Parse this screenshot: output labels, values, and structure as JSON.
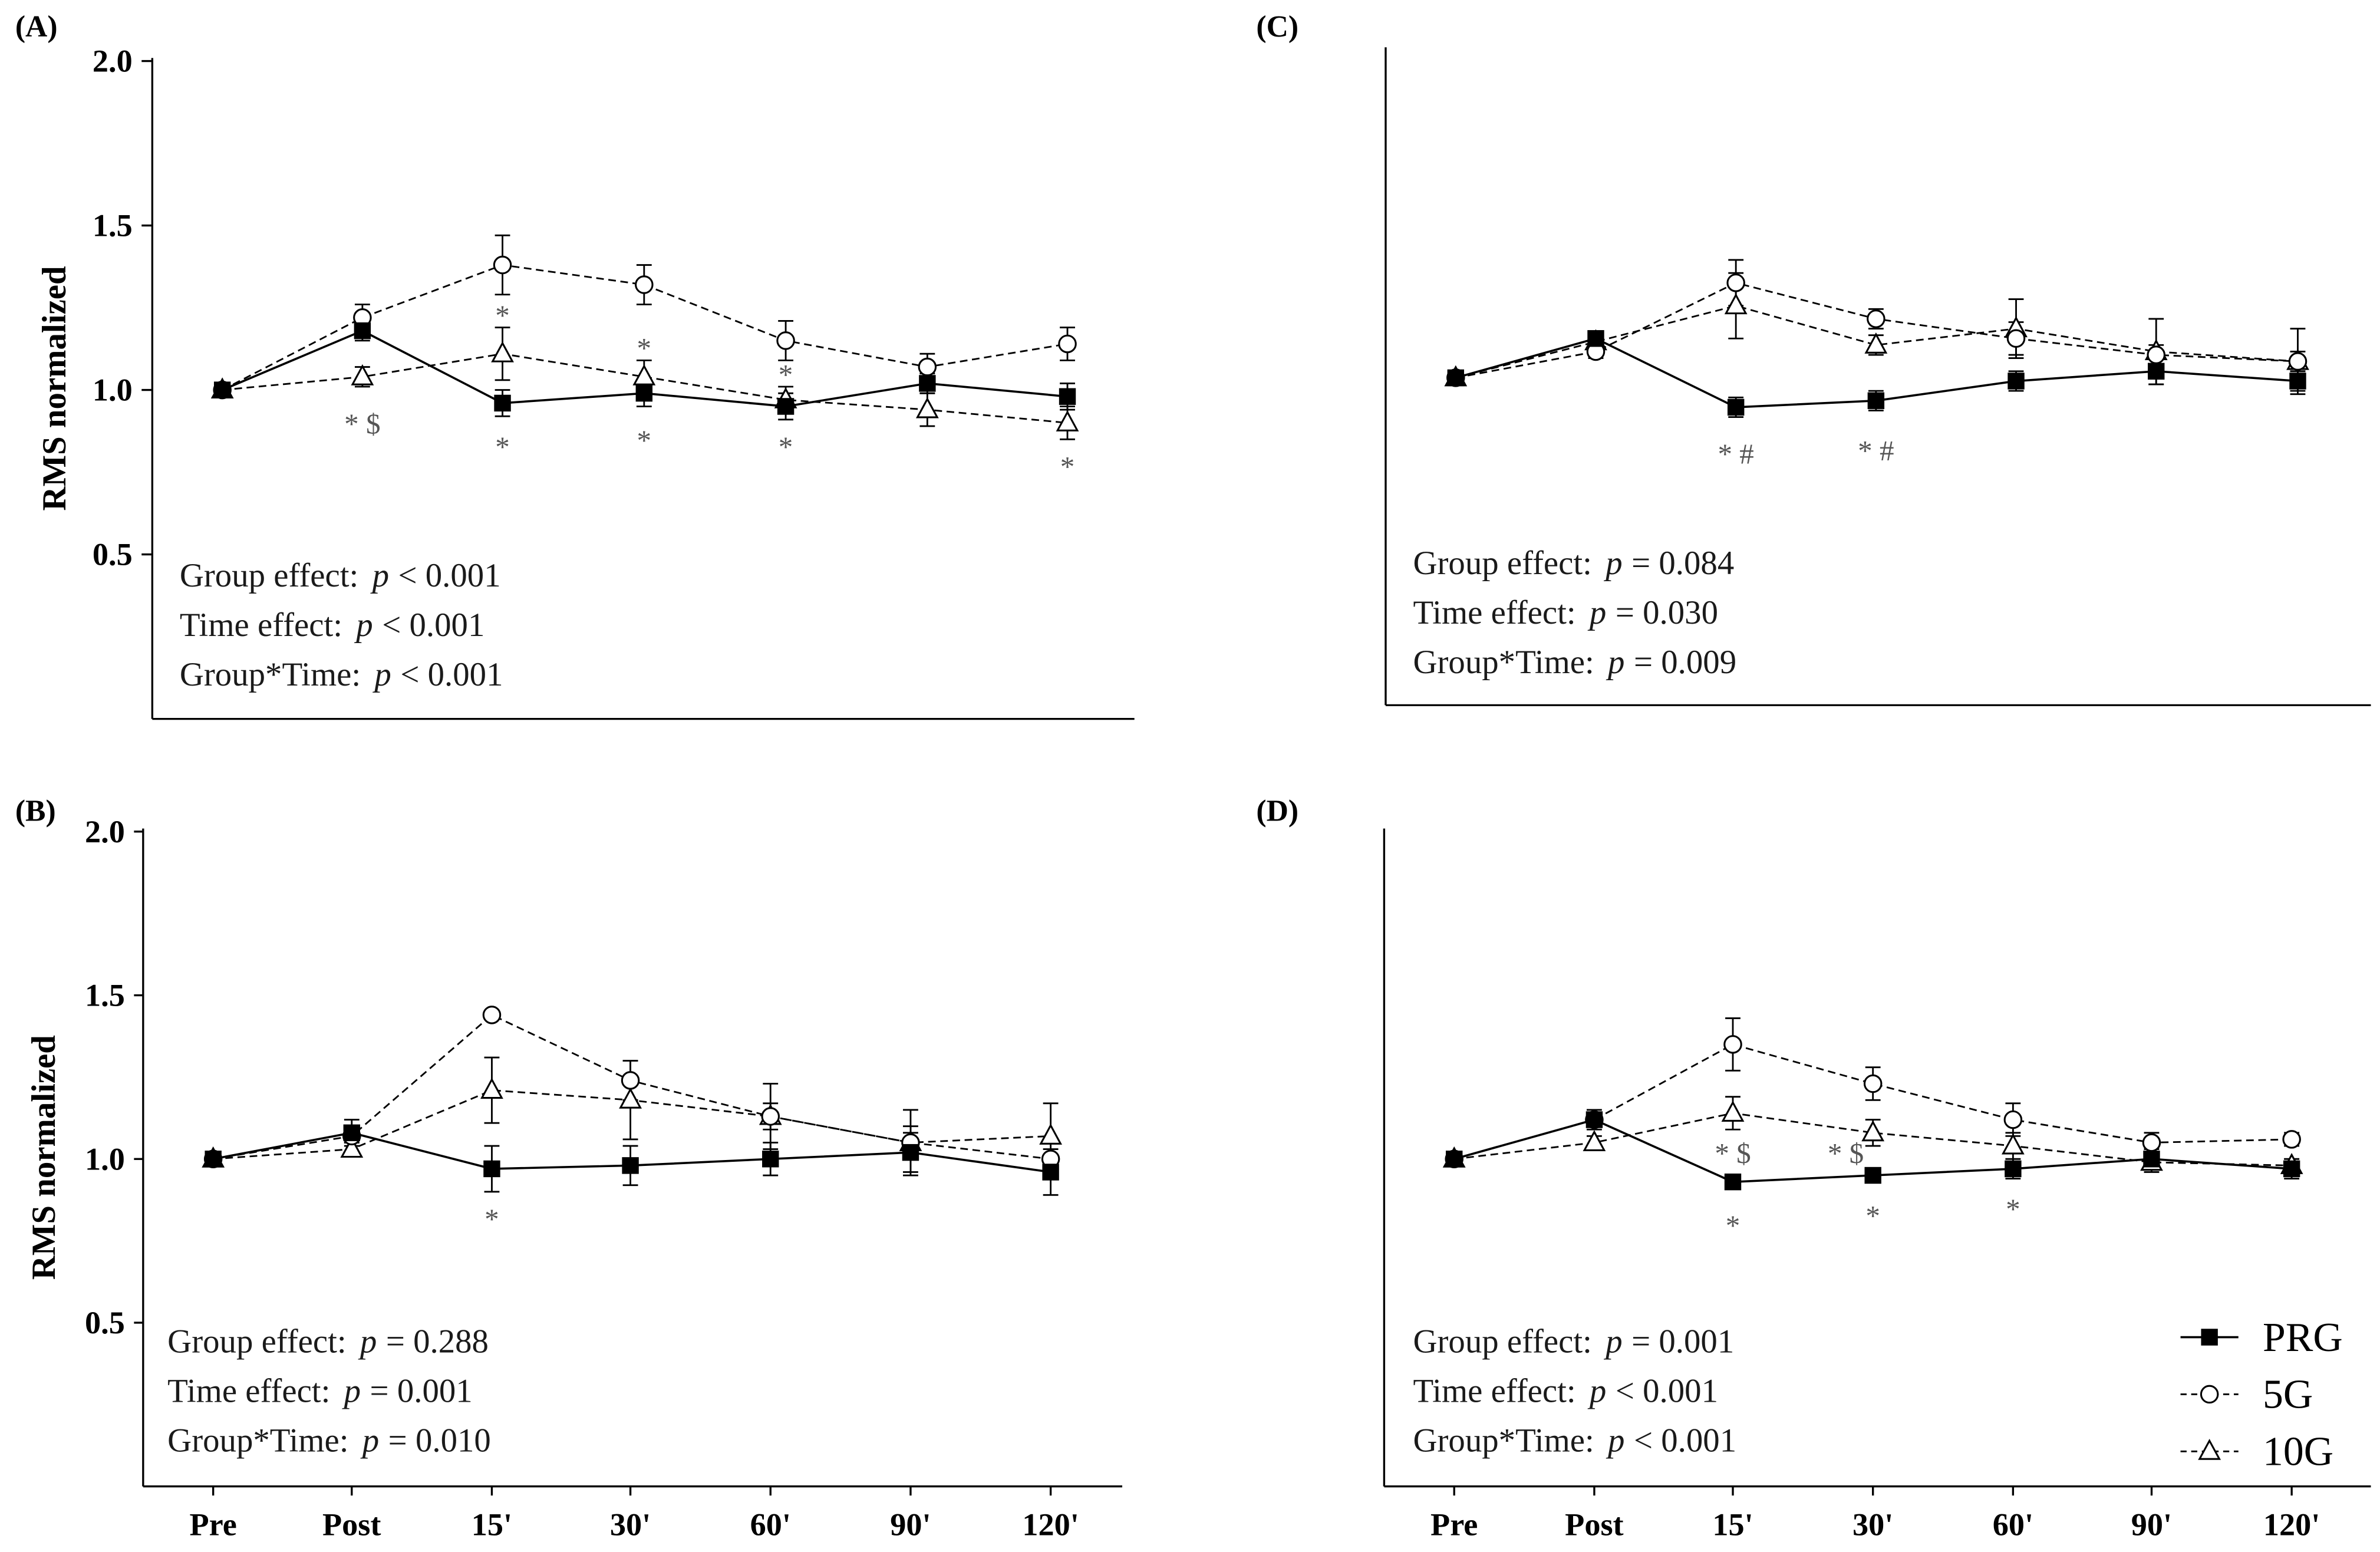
{
  "colors": {
    "line": "#000000",
    "annotation": "#555555",
    "background": "#ffffff",
    "marker_fill": "#ffffff"
  },
  "chart_data": [
    {
      "title": "(A)",
      "type": "line",
      "xlabel": "",
      "ylabel": "RMS normalized",
      "ylim": [
        0,
        2.0
      ],
      "yticks": [
        0.5,
        1.0,
        1.5,
        2.0
      ],
      "ytick_labels": [
        "0.5",
        "1.0",
        "1.5",
        "2.0"
      ],
      "show_x_tick_labels": false,
      "categories": [
        "Pre",
        "Post",
        "15'",
        "30'",
        "60'",
        "90'",
        "120'"
      ],
      "series": [
        {
          "name": "PRG",
          "values": [
            1.0,
            1.18,
            0.96,
            0.99,
            0.95,
            1.02,
            0.98
          ],
          "errors": [
            0,
            0.03,
            0.04,
            0.04,
            0.04,
            0.03,
            0.04
          ]
        },
        {
          "name": "5G",
          "values": [
            1.0,
            1.22,
            1.38,
            1.32,
            1.15,
            1.07,
            1.14
          ],
          "errors": [
            0,
            0.04,
            0.09,
            0.06,
            0.06,
            0.04,
            0.05
          ]
        },
        {
          "name": "10G",
          "values": [
            1.0,
            1.04,
            1.11,
            1.04,
            0.97,
            0.94,
            0.9
          ],
          "errors": [
            0,
            0.03,
            0.08,
            0.05,
            0.04,
            0.05,
            0.05
          ]
        }
      ],
      "annotations": [
        {
          "category": "Post",
          "y": 0.9,
          "text": "* $"
        },
        {
          "category": "15'",
          "y": 1.23,
          "text": "*"
        },
        {
          "category": "15'",
          "y": 0.83,
          "text": "*"
        },
        {
          "category": "30'",
          "y": 1.13,
          "text": "*"
        },
        {
          "category": "30'",
          "y": 0.85,
          "text": "*"
        },
        {
          "category": "60'",
          "y": 1.05,
          "text": "*"
        },
        {
          "category": "60'",
          "y": 0.83,
          "text": "*"
        },
        {
          "category": "120'",
          "y": 0.77,
          "text": "*"
        }
      ],
      "stats": [
        {
          "label": "Group effect:",
          "symbol": "p",
          "value": "< 0.001"
        },
        {
          "label": "Time effect:",
          "symbol": "p",
          "value": "< 0.001"
        },
        {
          "label": "Group*Time:",
          "symbol": "p",
          "value": "< 0.001"
        }
      ]
    },
    {
      "title": "(B)",
      "type": "line",
      "xlabel": "",
      "ylabel": "RMS normalized",
      "ylim": [
        0,
        2.0
      ],
      "yticks": [
        0.5,
        1.0,
        1.5,
        2.0
      ],
      "ytick_labels": [
        "0.5",
        "1.0",
        "1.5",
        "2.0"
      ],
      "show_x_tick_labels": true,
      "categories": [
        "Pre",
        "Post",
        "15'",
        "30'",
        "60'",
        "90'",
        "120'"
      ],
      "series": [
        {
          "name": "PRG",
          "values": [
            1.0,
            1.08,
            0.97,
            0.98,
            1.0,
            1.02,
            0.96
          ],
          "errors": [
            0,
            0.04,
            0.07,
            0.06,
            0.05,
            0.06,
            0.07
          ]
        },
        {
          "name": "5G",
          "values": [
            1.0,
            1.07,
            1.44,
            1.24,
            1.13,
            1.05,
            1.0
          ],
          "errors": [
            0,
            0.02,
            0.01,
            0.06,
            0.1,
            0.1,
            0.01
          ]
        },
        {
          "name": "10G",
          "values": [
            1.0,
            1.03,
            1.21,
            1.18,
            1.13,
            1.05,
            1.07
          ],
          "errors": [
            0,
            0.02,
            0.1,
            0.12,
            0.04,
            0.05,
            0.1
          ]
        }
      ],
      "annotations": [
        {
          "category": "15'",
          "y": 0.82,
          "text": "*"
        }
      ],
      "stats": [
        {
          "label": "Group effect:",
          "symbol": "p",
          "value": "= 0.288"
        },
        {
          "label": "Time effect:",
          "symbol": "p",
          "value": "= 0.001"
        },
        {
          "label": "Group*Time:",
          "symbol": "p",
          "value": "= 0.010"
        }
      ]
    },
    {
      "title": "(C)",
      "type": "line",
      "xlabel": "",
      "ylabel": "",
      "ylim": [
        0,
        2.0
      ],
      "show_x_tick_labels": false,
      "categories": [
        "Pre",
        "Post",
        "15'",
        "30'",
        "60'",
        "90'",
        "120'"
      ],
      "series": [
        {
          "name": "PRG",
          "values": [
            1.0,
            1.12,
            0.91,
            0.93,
            0.99,
            1.02,
            0.99
          ],
          "errors": [
            0,
            0.02,
            0.03,
            0.03,
            0.03,
            0.04,
            0.03
          ]
        },
        {
          "name": "5G",
          "values": [
            1.0,
            1.08,
            1.29,
            1.18,
            1.12,
            1.07,
            1.05
          ],
          "errors": [
            0,
            0.02,
            0.07,
            0.03,
            0.05,
            0.03,
            0.1
          ]
        },
        {
          "name": "10G",
          "values": [
            1.0,
            1.11,
            1.22,
            1.1,
            1.15,
            1.08,
            1.05
          ],
          "errors": [
            0,
            0.02,
            0.1,
            0.03,
            0.09,
            0.1,
            0.03
          ]
        }
      ],
      "annotations": [
        {
          "category": "15'",
          "y": 0.77,
          "text": "* #"
        },
        {
          "category": "30'",
          "y": 0.78,
          "text": "* #"
        }
      ],
      "stats": [
        {
          "label": "Group effect:",
          "symbol": "p",
          "value": "= 0.084"
        },
        {
          "label": "Time effect:",
          "symbol": "p",
          "value": "= 0.030"
        },
        {
          "label": "Group*Time:",
          "symbol": "p",
          "value": "= 0.009"
        }
      ]
    },
    {
      "title": "(D)",
      "type": "line",
      "xlabel": "",
      "ylabel": "",
      "ylim": [
        0,
        2.0
      ],
      "show_x_tick_labels": true,
      "categories": [
        "Pre",
        "Post",
        "15'",
        "30'",
        "60'",
        "90'",
        "120'"
      ],
      "series": [
        {
          "name": "PRG",
          "values": [
            1.0,
            1.12,
            0.93,
            0.95,
            0.97,
            1.0,
            0.97
          ],
          "errors": [
            0,
            0.03,
            0.02,
            0.02,
            0.03,
            0.03,
            0.03
          ]
        },
        {
          "name": "5G",
          "values": [
            1.0,
            1.12,
            1.35,
            1.23,
            1.12,
            1.05,
            1.06
          ],
          "errors": [
            0,
            0.02,
            0.08,
            0.05,
            0.05,
            0.03,
            0.02
          ]
        },
        {
          "name": "10G",
          "values": [
            1.0,
            1.05,
            1.14,
            1.08,
            1.04,
            0.99,
            0.98
          ],
          "errors": [
            0,
            0.02,
            0.05,
            0.04,
            0.04,
            0.03,
            0.02
          ]
        }
      ],
      "annotations": [
        {
          "category": "15'",
          "y": 1.02,
          "text": "* $"
        },
        {
          "category": "30'",
          "y": 1.02,
          "text": "* $",
          "align": "left"
        },
        {
          "category": "15'",
          "y": 0.8,
          "text": "*"
        },
        {
          "category": "30'",
          "y": 0.83,
          "text": "*"
        },
        {
          "category": "60'",
          "y": 0.85,
          "text": "*"
        }
      ],
      "stats": [
        {
          "label": "Group effect:",
          "symbol": "p",
          "value": "= 0.001"
        },
        {
          "label": "Time effect:",
          "symbol": "p",
          "value": "< 0.001"
        },
        {
          "label": "Group*Time:",
          "symbol": "p",
          "value": "< 0.001"
        }
      ],
      "legend": {
        "position": "bottom-right",
        "entries": [
          "PRG",
          "5G",
          "10G"
        ]
      }
    }
  ]
}
